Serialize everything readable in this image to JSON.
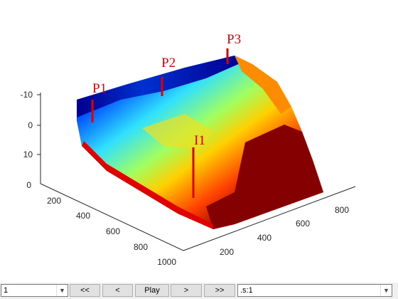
{
  "axes": {
    "z_ticks": [
      "-10",
      "0",
      "10"
    ],
    "x_ticks": [
      "0",
      "200",
      "400",
      "600",
      "800",
      "1000"
    ],
    "y_ticks": [
      "200",
      "400",
      "600",
      "800"
    ]
  },
  "wells": [
    "P1",
    "P2",
    "P3",
    "I1"
  ],
  "toolbar": {
    "step_select": "1",
    "buttons": [
      "<<",
      "<",
      "Play",
      ">",
      ">>"
    ],
    "property_select": ".s:1"
  }
}
